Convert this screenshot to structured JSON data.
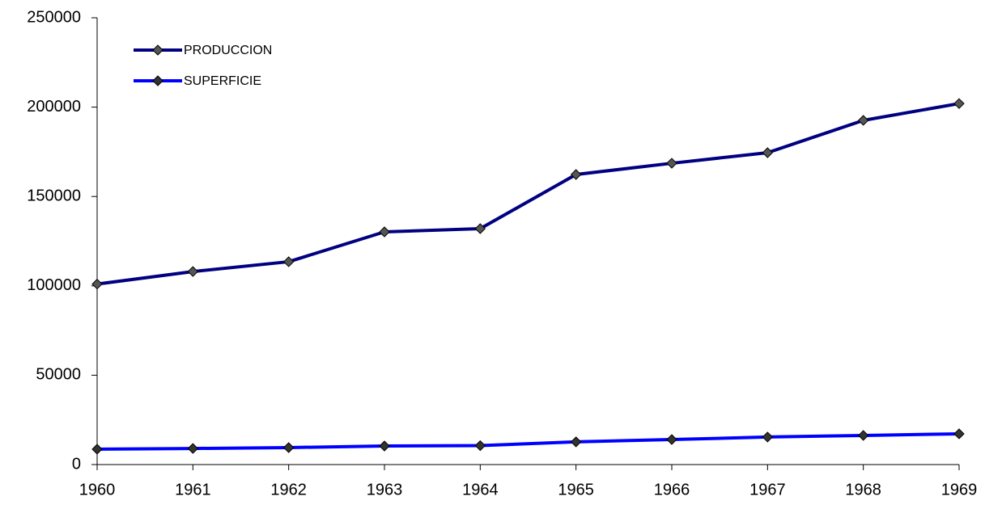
{
  "chart_data": {
    "type": "line",
    "categories": [
      1960,
      1961,
      1962,
      1963,
      1964,
      1965,
      1966,
      1967,
      1968,
      1969
    ],
    "series": [
      {
        "name": "PRODUCCION",
        "color": "#000080",
        "marker_color": "#555555",
        "values": [
          101000,
          108000,
          113500,
          130200,
          132000,
          162300,
          168600,
          174500,
          192600,
          202000
        ]
      },
      {
        "name": "SUPERFICIE",
        "color": "#0000ff",
        "marker_color": "#333333",
        "values": [
          8600,
          9000,
          9500,
          10400,
          10600,
          12700,
          14000,
          15400,
          16300,
          17200
        ]
      }
    ],
    "ylim": [
      0,
      250000
    ],
    "yticks": [
      0,
      50000,
      100000,
      150000,
      200000,
      250000
    ],
    "grid": false,
    "legend": "top-left"
  }
}
